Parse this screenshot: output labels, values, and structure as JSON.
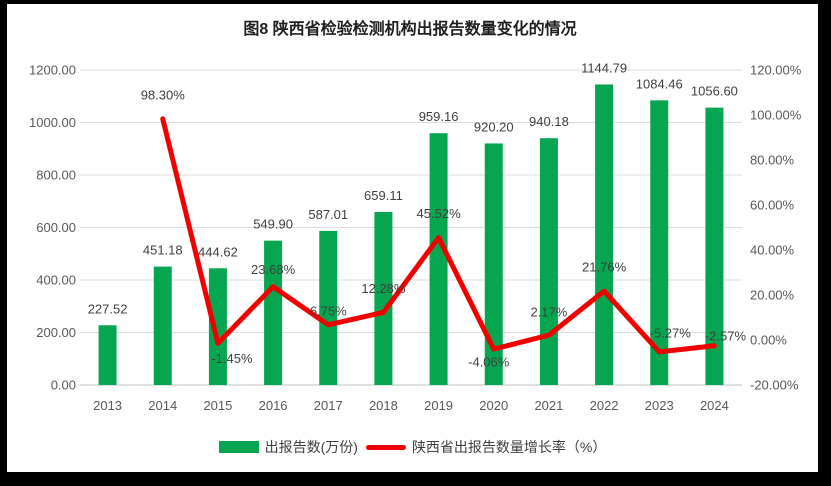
{
  "title": "图8  陕西省检验检测机构出报告数量变化的情况",
  "colors": {
    "bar_green": "#06A550",
    "line_red": "#F20000",
    "gridline": "#DCDCDC",
    "axis_line": "#BFBFBF",
    "tick_text": "#595959",
    "label_text": "#404040",
    "title_text": "#1F1F1F",
    "frame": "#000000",
    "chart_background": "#FFFFFF"
  },
  "legend": {
    "bar_label": "出报告数(万份)",
    "line_label": "陕西省出报告数量增长率（%）"
  },
  "chart_data": {
    "type": "bar",
    "subtype": "bar+line combo, secondary percentage axis",
    "title": "图8  陕西省检验检测机构出报告数量变化的情况",
    "categories": [
      "2013",
      "2014",
      "2015",
      "2016",
      "2017",
      "2018",
      "2019",
      "2020",
      "2021",
      "2022",
      "2023",
      "2024"
    ],
    "series": [
      {
        "name": "出报告数(万份)",
        "type": "bar",
        "axis": "left",
        "color": "#06A550",
        "values": [
          227.52,
          451.18,
          444.62,
          549.9,
          587.01,
          659.11,
          959.16,
          920.2,
          940.18,
          1144.79,
          1084.46,
          1056.6
        ],
        "labels": [
          "227.52",
          "451.18",
          "444.62",
          "549.90",
          "587.01",
          "659.11",
          "959.16",
          "920.20",
          "940.18",
          "1144.79",
          "1084.46",
          "1056.60"
        ]
      },
      {
        "name": "陕西省出报告数量增长率（%）",
        "type": "line",
        "axis": "right",
        "color": "#F20000",
        "start_category_index": 1,
        "values": [
          98.3,
          -1.45,
          23.68,
          6.75,
          12.28,
          45.52,
          -4.06,
          2.17,
          21.76,
          -5.27,
          -2.57
        ],
        "labels": [
          "98.30%",
          "-1.45%",
          "23.68%",
          "6.75%",
          "12.28%",
          "45.52%",
          "-4.06%",
          "2.17%",
          "21.76%",
          "-5.27%",
          "-2.57%"
        ]
      }
    ],
    "left_axis": {
      "min": 0,
      "max": 1200,
      "step": 200,
      "tick_labels": [
        "1200.00",
        "1000.00",
        "800.00",
        "600.00",
        "400.00",
        "200.00",
        "0.00"
      ]
    },
    "right_axis": {
      "min": -20,
      "max": 120,
      "step": 20,
      "tick_labels": [
        "120.00%",
        "100.00%",
        "80.00%",
        "60.00%",
        "40.00%",
        "20.00%",
        "0.00%",
        "-20.00%"
      ]
    },
    "grid": true,
    "legend_position": "bottom"
  }
}
